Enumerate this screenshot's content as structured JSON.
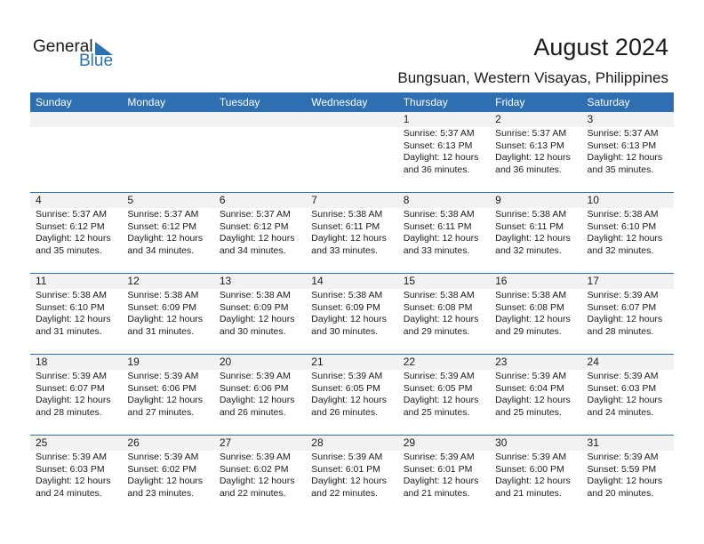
{
  "logo": {
    "text1": "General",
    "text2": "Blue"
  },
  "header": {
    "title": "August 2024",
    "location": "Bungsuan, Western Visayas, Philippines"
  },
  "weekdays": [
    "Sunday",
    "Monday",
    "Tuesday",
    "Wednesday",
    "Thursday",
    "Friday",
    "Saturday"
  ],
  "colors": {
    "accent": "#2e6fb2",
    "band": "#f2f2f2"
  },
  "first_weekday_offset": 4,
  "days": [
    {
      "day": "1",
      "sunrise": "Sunrise: 5:37 AM",
      "sunset": "Sunset: 6:13 PM",
      "daylight": "Daylight: 12 hours",
      "minutes": "and 36 minutes."
    },
    {
      "day": "2",
      "sunrise": "Sunrise: 5:37 AM",
      "sunset": "Sunset: 6:13 PM",
      "daylight": "Daylight: 12 hours",
      "minutes": "and 36 minutes."
    },
    {
      "day": "3",
      "sunrise": "Sunrise: 5:37 AM",
      "sunset": "Sunset: 6:13 PM",
      "daylight": "Daylight: 12 hours",
      "minutes": "and 35 minutes."
    },
    {
      "day": "4",
      "sunrise": "Sunrise: 5:37 AM",
      "sunset": "Sunset: 6:12 PM",
      "daylight": "Daylight: 12 hours",
      "minutes": "and 35 minutes."
    },
    {
      "day": "5",
      "sunrise": "Sunrise: 5:37 AM",
      "sunset": "Sunset: 6:12 PM",
      "daylight": "Daylight: 12 hours",
      "minutes": "and 34 minutes."
    },
    {
      "day": "6",
      "sunrise": "Sunrise: 5:37 AM",
      "sunset": "Sunset: 6:12 PM",
      "daylight": "Daylight: 12 hours",
      "minutes": "and 34 minutes."
    },
    {
      "day": "7",
      "sunrise": "Sunrise: 5:38 AM",
      "sunset": "Sunset: 6:11 PM",
      "daylight": "Daylight: 12 hours",
      "minutes": "and 33 minutes."
    },
    {
      "day": "8",
      "sunrise": "Sunrise: 5:38 AM",
      "sunset": "Sunset: 6:11 PM",
      "daylight": "Daylight: 12 hours",
      "minutes": "and 33 minutes."
    },
    {
      "day": "9",
      "sunrise": "Sunrise: 5:38 AM",
      "sunset": "Sunset: 6:11 PM",
      "daylight": "Daylight: 12 hours",
      "minutes": "and 32 minutes."
    },
    {
      "day": "10",
      "sunrise": "Sunrise: 5:38 AM",
      "sunset": "Sunset: 6:10 PM",
      "daylight": "Daylight: 12 hours",
      "minutes": "and 32 minutes."
    },
    {
      "day": "11",
      "sunrise": "Sunrise: 5:38 AM",
      "sunset": "Sunset: 6:10 PM",
      "daylight": "Daylight: 12 hours",
      "minutes": "and 31 minutes."
    },
    {
      "day": "12",
      "sunrise": "Sunrise: 5:38 AM",
      "sunset": "Sunset: 6:09 PM",
      "daylight": "Daylight: 12 hours",
      "minutes": "and 31 minutes."
    },
    {
      "day": "13",
      "sunrise": "Sunrise: 5:38 AM",
      "sunset": "Sunset: 6:09 PM",
      "daylight": "Daylight: 12 hours",
      "minutes": "and 30 minutes."
    },
    {
      "day": "14",
      "sunrise": "Sunrise: 5:38 AM",
      "sunset": "Sunset: 6:09 PM",
      "daylight": "Daylight: 12 hours",
      "minutes": "and 30 minutes."
    },
    {
      "day": "15",
      "sunrise": "Sunrise: 5:38 AM",
      "sunset": "Sunset: 6:08 PM",
      "daylight": "Daylight: 12 hours",
      "minutes": "and 29 minutes."
    },
    {
      "day": "16",
      "sunrise": "Sunrise: 5:38 AM",
      "sunset": "Sunset: 6:08 PM",
      "daylight": "Daylight: 12 hours",
      "minutes": "and 29 minutes."
    },
    {
      "day": "17",
      "sunrise": "Sunrise: 5:39 AM",
      "sunset": "Sunset: 6:07 PM",
      "daylight": "Daylight: 12 hours",
      "minutes": "and 28 minutes."
    },
    {
      "day": "18",
      "sunrise": "Sunrise: 5:39 AM",
      "sunset": "Sunset: 6:07 PM",
      "daylight": "Daylight: 12 hours",
      "minutes": "and 28 minutes."
    },
    {
      "day": "19",
      "sunrise": "Sunrise: 5:39 AM",
      "sunset": "Sunset: 6:06 PM",
      "daylight": "Daylight: 12 hours",
      "minutes": "and 27 minutes."
    },
    {
      "day": "20",
      "sunrise": "Sunrise: 5:39 AM",
      "sunset": "Sunset: 6:06 PM",
      "daylight": "Daylight: 12 hours",
      "minutes": "and 26 minutes."
    },
    {
      "day": "21",
      "sunrise": "Sunrise: 5:39 AM",
      "sunset": "Sunset: 6:05 PM",
      "daylight": "Daylight: 12 hours",
      "minutes": "and 26 minutes."
    },
    {
      "day": "22",
      "sunrise": "Sunrise: 5:39 AM",
      "sunset": "Sunset: 6:05 PM",
      "daylight": "Daylight: 12 hours",
      "minutes": "and 25 minutes."
    },
    {
      "day": "23",
      "sunrise": "Sunrise: 5:39 AM",
      "sunset": "Sunset: 6:04 PM",
      "daylight": "Daylight: 12 hours",
      "minutes": "and 25 minutes."
    },
    {
      "day": "24",
      "sunrise": "Sunrise: 5:39 AM",
      "sunset": "Sunset: 6:03 PM",
      "daylight": "Daylight: 12 hours",
      "minutes": "and 24 minutes."
    },
    {
      "day": "25",
      "sunrise": "Sunrise: 5:39 AM",
      "sunset": "Sunset: 6:03 PM",
      "daylight": "Daylight: 12 hours",
      "minutes": "and 24 minutes."
    },
    {
      "day": "26",
      "sunrise": "Sunrise: 5:39 AM",
      "sunset": "Sunset: 6:02 PM",
      "daylight": "Daylight: 12 hours",
      "minutes": "and 23 minutes."
    },
    {
      "day": "27",
      "sunrise": "Sunrise: 5:39 AM",
      "sunset": "Sunset: 6:02 PM",
      "daylight": "Daylight: 12 hours",
      "minutes": "and 22 minutes."
    },
    {
      "day": "28",
      "sunrise": "Sunrise: 5:39 AM",
      "sunset": "Sunset: 6:01 PM",
      "daylight": "Daylight: 12 hours",
      "minutes": "and 22 minutes."
    },
    {
      "day": "29",
      "sunrise": "Sunrise: 5:39 AM",
      "sunset": "Sunset: 6:01 PM",
      "daylight": "Daylight: 12 hours",
      "minutes": "and 21 minutes."
    },
    {
      "day": "30",
      "sunrise": "Sunrise: 5:39 AM",
      "sunset": "Sunset: 6:00 PM",
      "daylight": "Daylight: 12 hours",
      "minutes": "and 21 minutes."
    },
    {
      "day": "31",
      "sunrise": "Sunrise: 5:39 AM",
      "sunset": "Sunset: 5:59 PM",
      "daylight": "Daylight: 12 hours",
      "minutes": "and 20 minutes."
    }
  ]
}
